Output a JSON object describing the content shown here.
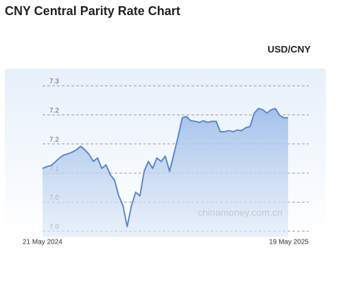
{
  "chart_data": {
    "type": "line",
    "title": "CNY Central Parity Rate Chart",
    "subtitle": "USD/CNY",
    "watermark": "chinamoney.com.cn",
    "color": "#5b87cf",
    "grid": true,
    "categories": [
      "21 May 2024",
      null,
      null,
      null,
      null,
      null,
      null,
      null,
      null,
      null,
      null,
      null,
      null,
      null,
      null,
      null,
      null,
      null,
      null,
      null,
      null,
      null,
      null,
      null,
      null,
      null,
      null,
      null,
      null,
      null,
      null,
      null,
      null,
      null,
      null,
      null,
      null,
      null,
      null,
      null,
      null,
      null,
      null,
      null,
      null,
      null,
      null,
      null,
      null,
      null,
      null,
      null,
      null,
      null,
      null,
      null,
      null,
      null,
      "19 May 2025"
    ],
    "values": [
      7.108,
      7.111,
      7.113,
      7.119,
      7.126,
      7.131,
      7.133,
      7.136,
      7.14,
      7.146,
      7.14,
      7.132,
      7.12,
      7.126,
      7.108,
      7.114,
      7.097,
      7.088,
      7.061,
      7.044,
      7.008,
      7.044,
      7.067,
      7.061,
      7.103,
      7.12,
      7.108,
      7.126,
      7.12,
      7.129,
      7.103,
      7.132,
      7.162,
      7.195,
      7.197,
      7.19,
      7.189,
      7.187,
      7.19,
      7.187,
      7.189,
      7.189,
      7.171,
      7.171,
      7.173,
      7.171,
      7.174,
      7.173,
      7.178,
      7.18,
      7.203,
      7.211,
      7.209,
      7.203,
      7.209,
      7.211,
      7.199,
      7.195,
      7.195
    ],
    "ylim": [
      7.0,
      7.25
    ],
    "yticks": [
      {
        "value": 7.0,
        "label": "7.0"
      },
      {
        "value": 7.05,
        "label": "7.0"
      },
      {
        "value": 7.1,
        "label": "7.1"
      },
      {
        "value": 7.15,
        "label": "7.2"
      },
      {
        "value": 7.2,
        "label": "7.2"
      },
      {
        "value": 7.25,
        "label": "7.3"
      }
    ]
  }
}
